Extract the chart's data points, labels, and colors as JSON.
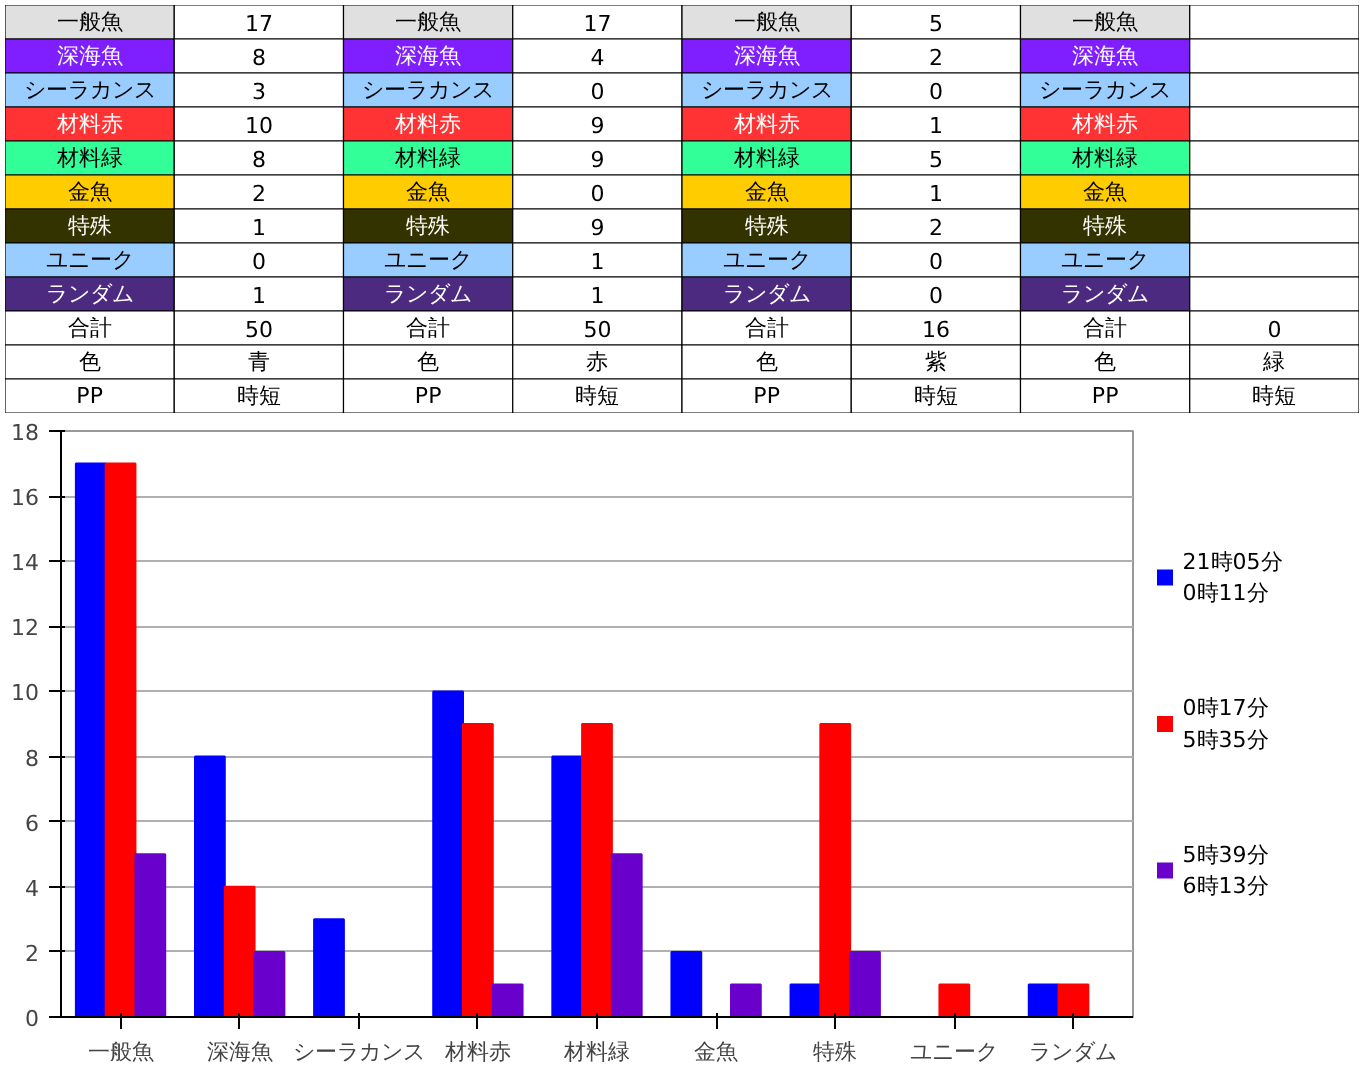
{
  "chart_data": [
    {
      "type": "other",
      "categories": [
        "一般魚",
        "深海魚",
        "シーラカンス",
        "材料赤",
        "材料緑",
        "金魚",
        "特殊",
        "ユニーク",
        "ランダム",
        "合計"
      ],
      "colors": [
        "#e0e0e0",
        "#7f1fff",
        "#99ccff",
        "#ff3333",
        "#33ff99",
        "#ffcc00",
        "#333300",
        "#99ccff",
        "#4b2a7f",
        "#ffffff"
      ],
      "series": [
        {
          "name": "青",
          "values": [
            17,
            8,
            3,
            10,
            8,
            2,
            1,
            0,
            1,
            50
          ]
        },
        {
          "name": "赤",
          "values": [
            17,
            4,
            0,
            9,
            9,
            0,
            9,
            1,
            1,
            50
          ]
        },
        {
          "name": "紫",
          "values": [
            5,
            2,
            0,
            1,
            5,
            1,
            2,
            0,
            0,
            16
          ]
        },
        {
          "name": "緑",
          "values": [
            null,
            null,
            null,
            null,
            null,
            null,
            null,
            null,
            null,
            0
          ]
        }
      ],
      "annotations": [
        "色",
        "PP",
        "時短"
      ],
      "data_labels": true
    },
    {
      "type": "bar",
      "categories": [
        "一般魚",
        "深海魚",
        "シーラカンス",
        "材料赤",
        "材料緑",
        "金魚",
        "特殊",
        "ユニーク",
        "ランダム"
      ],
      "series": [
        {
          "name": "21時05分\n0時11分",
          "color": "#0000ff",
          "values": [
            17,
            8,
            3,
            10,
            8,
            2,
            1,
            0,
            1
          ]
        },
        {
          "name": "0時17分\n5時35分",
          "color": "#ff0000",
          "values": [
            17,
            4,
            0,
            9,
            9,
            0,
            9,
            1,
            1
          ]
        },
        {
          "name": "5時39分\n6時13分",
          "color": "#6a00cc",
          "values": [
            5,
            2,
            0,
            1,
            5,
            1,
            2,
            0,
            0
          ]
        }
      ],
      "ylim": [
        0,
        18
      ],
      "yticks": [
        0,
        2,
        4,
        6,
        8,
        10,
        12,
        14,
        16,
        18
      ],
      "grid": "y",
      "legend": "right"
    }
  ]
}
